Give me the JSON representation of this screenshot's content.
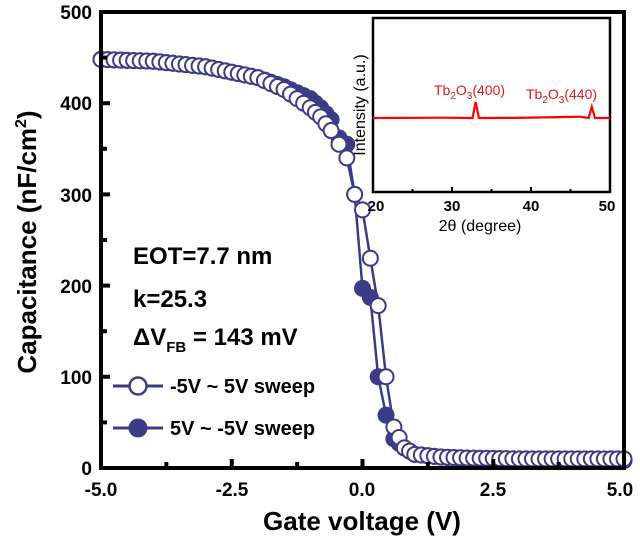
{
  "chart_data": [
    {
      "type": "scatter",
      "title": "",
      "xlabel": "Gate voltage (V)",
      "ylabel": "Capacitance (nF/cm²)",
      "xlim": [
        -5.0,
        5.0
      ],
      "ylim": [
        0,
        500
      ],
      "xticks": [
        "-5.0",
        "-2.5",
        "0.0",
        "2.5",
        "5.0"
      ],
      "yticks": [
        "0",
        "100",
        "200",
        "300",
        "400",
        "500"
      ],
      "grid": false,
      "legend_position": "lower-left inside",
      "series": [
        {
          "name": "-5V ~ 5V sweep",
          "marker": "open-circle",
          "color": "#3b3c86",
          "x": [
            -5.0,
            -4.0,
            -3.0,
            -2.0,
            -1.5,
            -1.0,
            -0.8,
            -0.6,
            -0.45,
            -0.3,
            -0.15,
            0.0,
            0.15,
            0.3,
            0.45,
            0.6,
            0.8,
            1.0,
            1.5,
            2.0,
            3.0,
            4.0,
            5.0
          ],
          "y": [
            448,
            446,
            440,
            428,
            415,
            395,
            385,
            370,
            355,
            340,
            300,
            283,
            230,
            178,
            100,
            45,
            22,
            15,
            12,
            11,
            10,
            10,
            10
          ]
        },
        {
          "name": "5V ~ -5V sweep",
          "marker": "filled-circle",
          "color": "#3b3c86",
          "x": [
            5.0,
            4.0,
            3.0,
            2.0,
            1.5,
            1.0,
            0.8,
            0.6,
            0.45,
            0.3,
            0.15,
            0.0,
            -0.15,
            -0.3,
            -0.45,
            -0.6,
            -0.8,
            -1.0,
            -1.5,
            -2.0,
            -3.0,
            -4.0,
            -5.0
          ],
          "y": [
            8,
            8,
            9,
            10,
            12,
            15,
            22,
            32,
            58,
            100,
            187,
            197,
            300,
            355,
            362,
            382,
            395,
            405,
            418,
            428,
            440,
            446,
            448
          ]
        }
      ],
      "annotations": [
        "EOT=7.7 nm",
        "k=25.3",
        "ΔV_FB = 143 mV"
      ]
    },
    {
      "type": "line",
      "title": "inset XRD",
      "xlabel": "2θ (degree)",
      "ylabel": "Intensity (a.u.)",
      "xlim": [
        20,
        50
      ],
      "xticks": [
        "20",
        "30",
        "40",
        "50"
      ],
      "series": [
        {
          "name": "XRD",
          "color": "#ff0000",
          "x": [
            20,
            29,
            32.6,
            33.0,
            33.4,
            38,
            46.2,
            47.3,
            47.7,
            48.1,
            50
          ],
          "y": [
            0,
            0.02,
            0,
            1.0,
            0,
            0.01,
            0.08,
            0,
            0.7,
            0,
            0
          ]
        }
      ],
      "peak_labels": [
        {
          "text": "Tb2O3(400)",
          "x": 33.0
        },
        {
          "text": "Tb2O3(440)",
          "x": 47.7
        }
      ]
    }
  ],
  "main": {
    "xlabel": "Gate voltage (V)",
    "ylabel_prefix": "Capacitance (nF/cm",
    "ylabel_sup": "2",
    "ylabel_suffix": ")",
    "xticks": [
      "-5.0",
      "-2.5",
      "0.0",
      "2.5",
      "5.0"
    ],
    "yticks": [
      "0",
      "100",
      "200",
      "300",
      "400",
      "500"
    ],
    "annotation_eot": "EOT=7.7 nm",
    "annotation_k": "k=25.3",
    "annotation_dv_prefix": "ΔV",
    "annotation_dv_sub": "FB",
    "annotation_dv_value": " = 143 mV",
    "legend": [
      "-5V ~ 5V sweep",
      "5V ~ -5V sweep"
    ],
    "series_color": "#3b3c86"
  },
  "inset": {
    "xlabel": "2θ (degree)",
    "ylabel": "Intensity (a.u.)",
    "xticks": [
      "20",
      "30",
      "40",
      "50"
    ],
    "peak1": {
      "base": "Tb",
      "sub1": "2",
      "mid": "O",
      "sub2": "3",
      "hkl": "(400)"
    },
    "peak2": {
      "base": "Tb",
      "sub1": "2",
      "mid": "O",
      "sub2": "3",
      "hkl": "(440)"
    },
    "line_color": "#ff0000"
  }
}
